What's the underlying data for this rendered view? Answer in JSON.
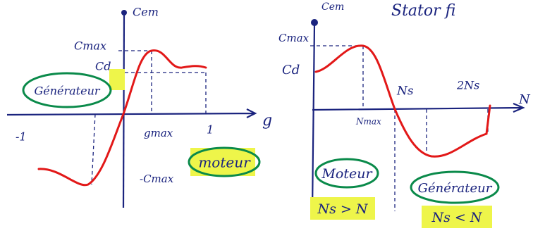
{
  "left": {
    "y_axis_label": "Cem",
    "cmax": "Cmax",
    "cd": "Cd",
    "generator": "Générateur",
    "x_axis_label": "g",
    "minus_one": "-1",
    "gmax": "gmax",
    "one": "1",
    "motor": "moteur",
    "minus_cmax": "-Cmax"
  },
  "right": {
    "y_axis_label": "Cem",
    "top_note": "Stator fi",
    "cmax": "Cmax",
    "cd": "Cd",
    "ns": "Ns",
    "two_ns": "2Ns",
    "x_axis_label": "N",
    "nmax": "Nmax",
    "motor": "Moteur",
    "motor_condition": "Ns > N",
    "generator": "Générateur",
    "generator_condition": "Ns < N"
  }
}
